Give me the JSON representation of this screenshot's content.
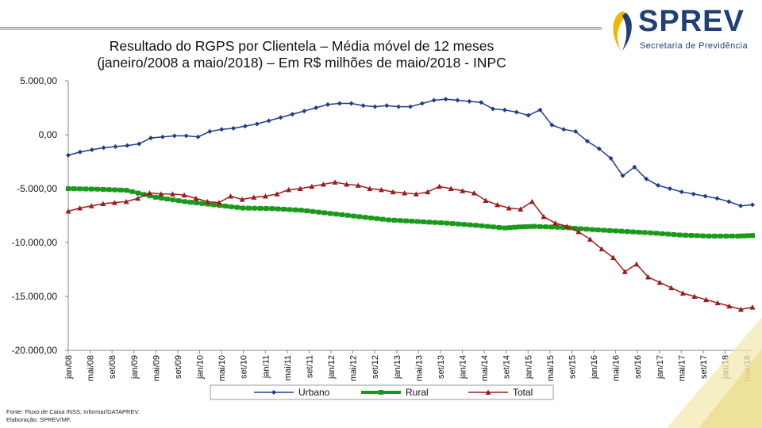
{
  "header": {
    "title_line1": "Resultado do RGPS por Clientela – Média móvel de 12 meses",
    "title_line2": "(janeiro/2008 a maio/2018) – Em R$ milhões de maio/2018 - INPC"
  },
  "logo": {
    "name": "SPREV",
    "subtitle": "Secretaria de Previdência",
    "colors": [
      "#1f3f7a",
      "#f2b600"
    ]
  },
  "footnote": {
    "source": "Fonte: Fluxo de Caixa INSS; Informar/DATAPREV.",
    "elaboration": "Elaboração: SPREV/MF."
  },
  "chart_data": {
    "type": "line",
    "title": "Resultado do RGPS por Clientela – Média móvel de 12 meses",
    "ylim": [
      -20000,
      5000
    ],
    "yticks": [
      5000,
      0,
      -5000,
      -10000,
      -15000,
      -20000
    ],
    "ytick_labels": [
      "5.000,00",
      "0,00",
      "-5.000,00",
      "-10.000,00",
      "-15.000,00",
      "-20.000,00"
    ],
    "xtick_labels": [
      "jan/08",
      "mai/08",
      "set/08",
      "jan/09",
      "mai/09",
      "set/09",
      "jan/10",
      "mai/10",
      "set/10",
      "jan/11",
      "mai/11",
      "set/11",
      "jan/12",
      "mai/12",
      "set/12",
      "jan/13",
      "mai/13",
      "set/13",
      "jan/14",
      "mai/14",
      "set/14",
      "jan/15",
      "mai/15",
      "set/15",
      "jan/16",
      "mai/16",
      "set/16",
      "jan/17",
      "mai/17",
      "set/17",
      "jan/18",
      "mai/18"
    ],
    "legend_position": "bottom",
    "series": [
      {
        "name": "Urbano",
        "color": "#1f3d8c",
        "marker": "diamond",
        "points": [
          [
            0,
            -1900
          ],
          [
            1,
            -1600
          ],
          [
            2,
            -1400
          ],
          [
            3,
            -1200
          ],
          [
            4,
            -1100
          ],
          [
            5,
            -1000
          ],
          [
            6,
            -850
          ],
          [
            7,
            -300
          ],
          [
            8,
            -200
          ],
          [
            9,
            -100
          ],
          [
            10,
            -100
          ],
          [
            11,
            -200
          ],
          [
            12,
            300
          ],
          [
            13,
            500
          ],
          [
            14,
            600
          ],
          [
            15,
            800
          ],
          [
            16,
            1000
          ],
          [
            17,
            1300
          ],
          [
            18,
            1600
          ],
          [
            19,
            1900
          ],
          [
            20,
            2200
          ],
          [
            21,
            2500
          ],
          [
            22,
            2800
          ],
          [
            23,
            2900
          ],
          [
            24,
            2900
          ],
          [
            25,
            2700
          ],
          [
            26,
            2600
          ],
          [
            27,
            2700
          ],
          [
            28,
            2600
          ],
          [
            29,
            2600
          ],
          [
            30,
            2900
          ],
          [
            31,
            3200
          ],
          [
            32,
            3300
          ],
          [
            33,
            3200
          ],
          [
            34,
            3100
          ],
          [
            35,
            3000
          ],
          [
            36,
            2400
          ],
          [
            37,
            2300
          ],
          [
            38,
            2100
          ],
          [
            39,
            1800
          ],
          [
            40,
            2300
          ],
          [
            41,
            900
          ],
          [
            42,
            500
          ],
          [
            43,
            300
          ],
          [
            44,
            -600
          ],
          [
            45,
            -1300
          ],
          [
            46,
            -2200
          ],
          [
            47,
            -3800
          ],
          [
            48,
            -3000
          ],
          [
            49,
            -4100
          ],
          [
            50,
            -4700
          ],
          [
            51,
            -5000
          ],
          [
            52,
            -5300
          ],
          [
            53,
            -5500
          ],
          [
            54,
            -5700
          ],
          [
            55,
            -5900
          ],
          [
            56,
            -6200
          ],
          [
            57,
            -6600
          ],
          [
            58,
            -6500
          ]
        ]
      },
      {
        "name": "Rural",
        "color": "#1a9a1a",
        "marker": "square",
        "points": [
          [
            0,
            -5000
          ],
          [
            4,
            -5050
          ],
          [
            8,
            -5150
          ],
          [
            12,
            -5800
          ],
          [
            16,
            -6200
          ],
          [
            20,
            -6500
          ],
          [
            24,
            -6800
          ],
          [
            28,
            -6850
          ],
          [
            32,
            -7000
          ],
          [
            36,
            -7300
          ],
          [
            40,
            -7600
          ],
          [
            44,
            -7900
          ],
          [
            48,
            -8050
          ],
          [
            52,
            -8200
          ],
          [
            56,
            -8400
          ],
          [
            60,
            -8650
          ],
          [
            62,
            -8550
          ],
          [
            64,
            -8500
          ],
          [
            68,
            -8600
          ],
          [
            72,
            -8800
          ],
          [
            76,
            -8950
          ],
          [
            80,
            -9100
          ],
          [
            84,
            -9300
          ],
          [
            88,
            -9400
          ],
          [
            92,
            -9400
          ],
          [
            94,
            -9350
          ]
        ]
      },
      {
        "name": "Total",
        "color": "#9b1c1c",
        "marker": "triangle",
        "points": [
          [
            0,
            -7100
          ],
          [
            1,
            -6800
          ],
          [
            2,
            -6600
          ],
          [
            3,
            -6400
          ],
          [
            4,
            -6300
          ],
          [
            5,
            -6200
          ],
          [
            6,
            -5900
          ],
          [
            7,
            -5400
          ],
          [
            8,
            -5500
          ],
          [
            9,
            -5500
          ],
          [
            10,
            -5600
          ],
          [
            11,
            -5900
          ],
          [
            12,
            -6200
          ],
          [
            13,
            -6300
          ],
          [
            14,
            -5700
          ],
          [
            15,
            -6000
          ],
          [
            16,
            -5800
          ],
          [
            17,
            -5700
          ],
          [
            18,
            -5500
          ],
          [
            19,
            -5100
          ],
          [
            20,
            -5000
          ],
          [
            21,
            -4800
          ],
          [
            22,
            -4600
          ],
          [
            23,
            -4400
          ],
          [
            24,
            -4600
          ],
          [
            25,
            -4700
          ],
          [
            26,
            -5000
          ],
          [
            27,
            -5100
          ],
          [
            28,
            -5300
          ],
          [
            29,
            -5400
          ],
          [
            30,
            -5500
          ],
          [
            31,
            -5300
          ],
          [
            32,
            -4800
          ],
          [
            33,
            -5000
          ],
          [
            34,
            -5200
          ],
          [
            35,
            -5400
          ],
          [
            36,
            -6100
          ],
          [
            37,
            -6500
          ],
          [
            38,
            -6800
          ],
          [
            39,
            -6900
          ],
          [
            40,
            -6200
          ],
          [
            41,
            -7600
          ],
          [
            42,
            -8200
          ],
          [
            43,
            -8500
          ],
          [
            44,
            -9000
          ],
          [
            45,
            -9700
          ],
          [
            46,
            -10600
          ],
          [
            47,
            -11400
          ],
          [
            48,
            -12700
          ],
          [
            49,
            -12000
          ],
          [
            50,
            -13200
          ],
          [
            51,
            -13700
          ],
          [
            52,
            -14200
          ],
          [
            53,
            -14700
          ],
          [
            54,
            -15000
          ],
          [
            55,
            -15300
          ],
          [
            56,
            -15600
          ],
          [
            57,
            -15900
          ],
          [
            58,
            -16200
          ],
          [
            59,
            -16000
          ]
        ]
      }
    ]
  }
}
